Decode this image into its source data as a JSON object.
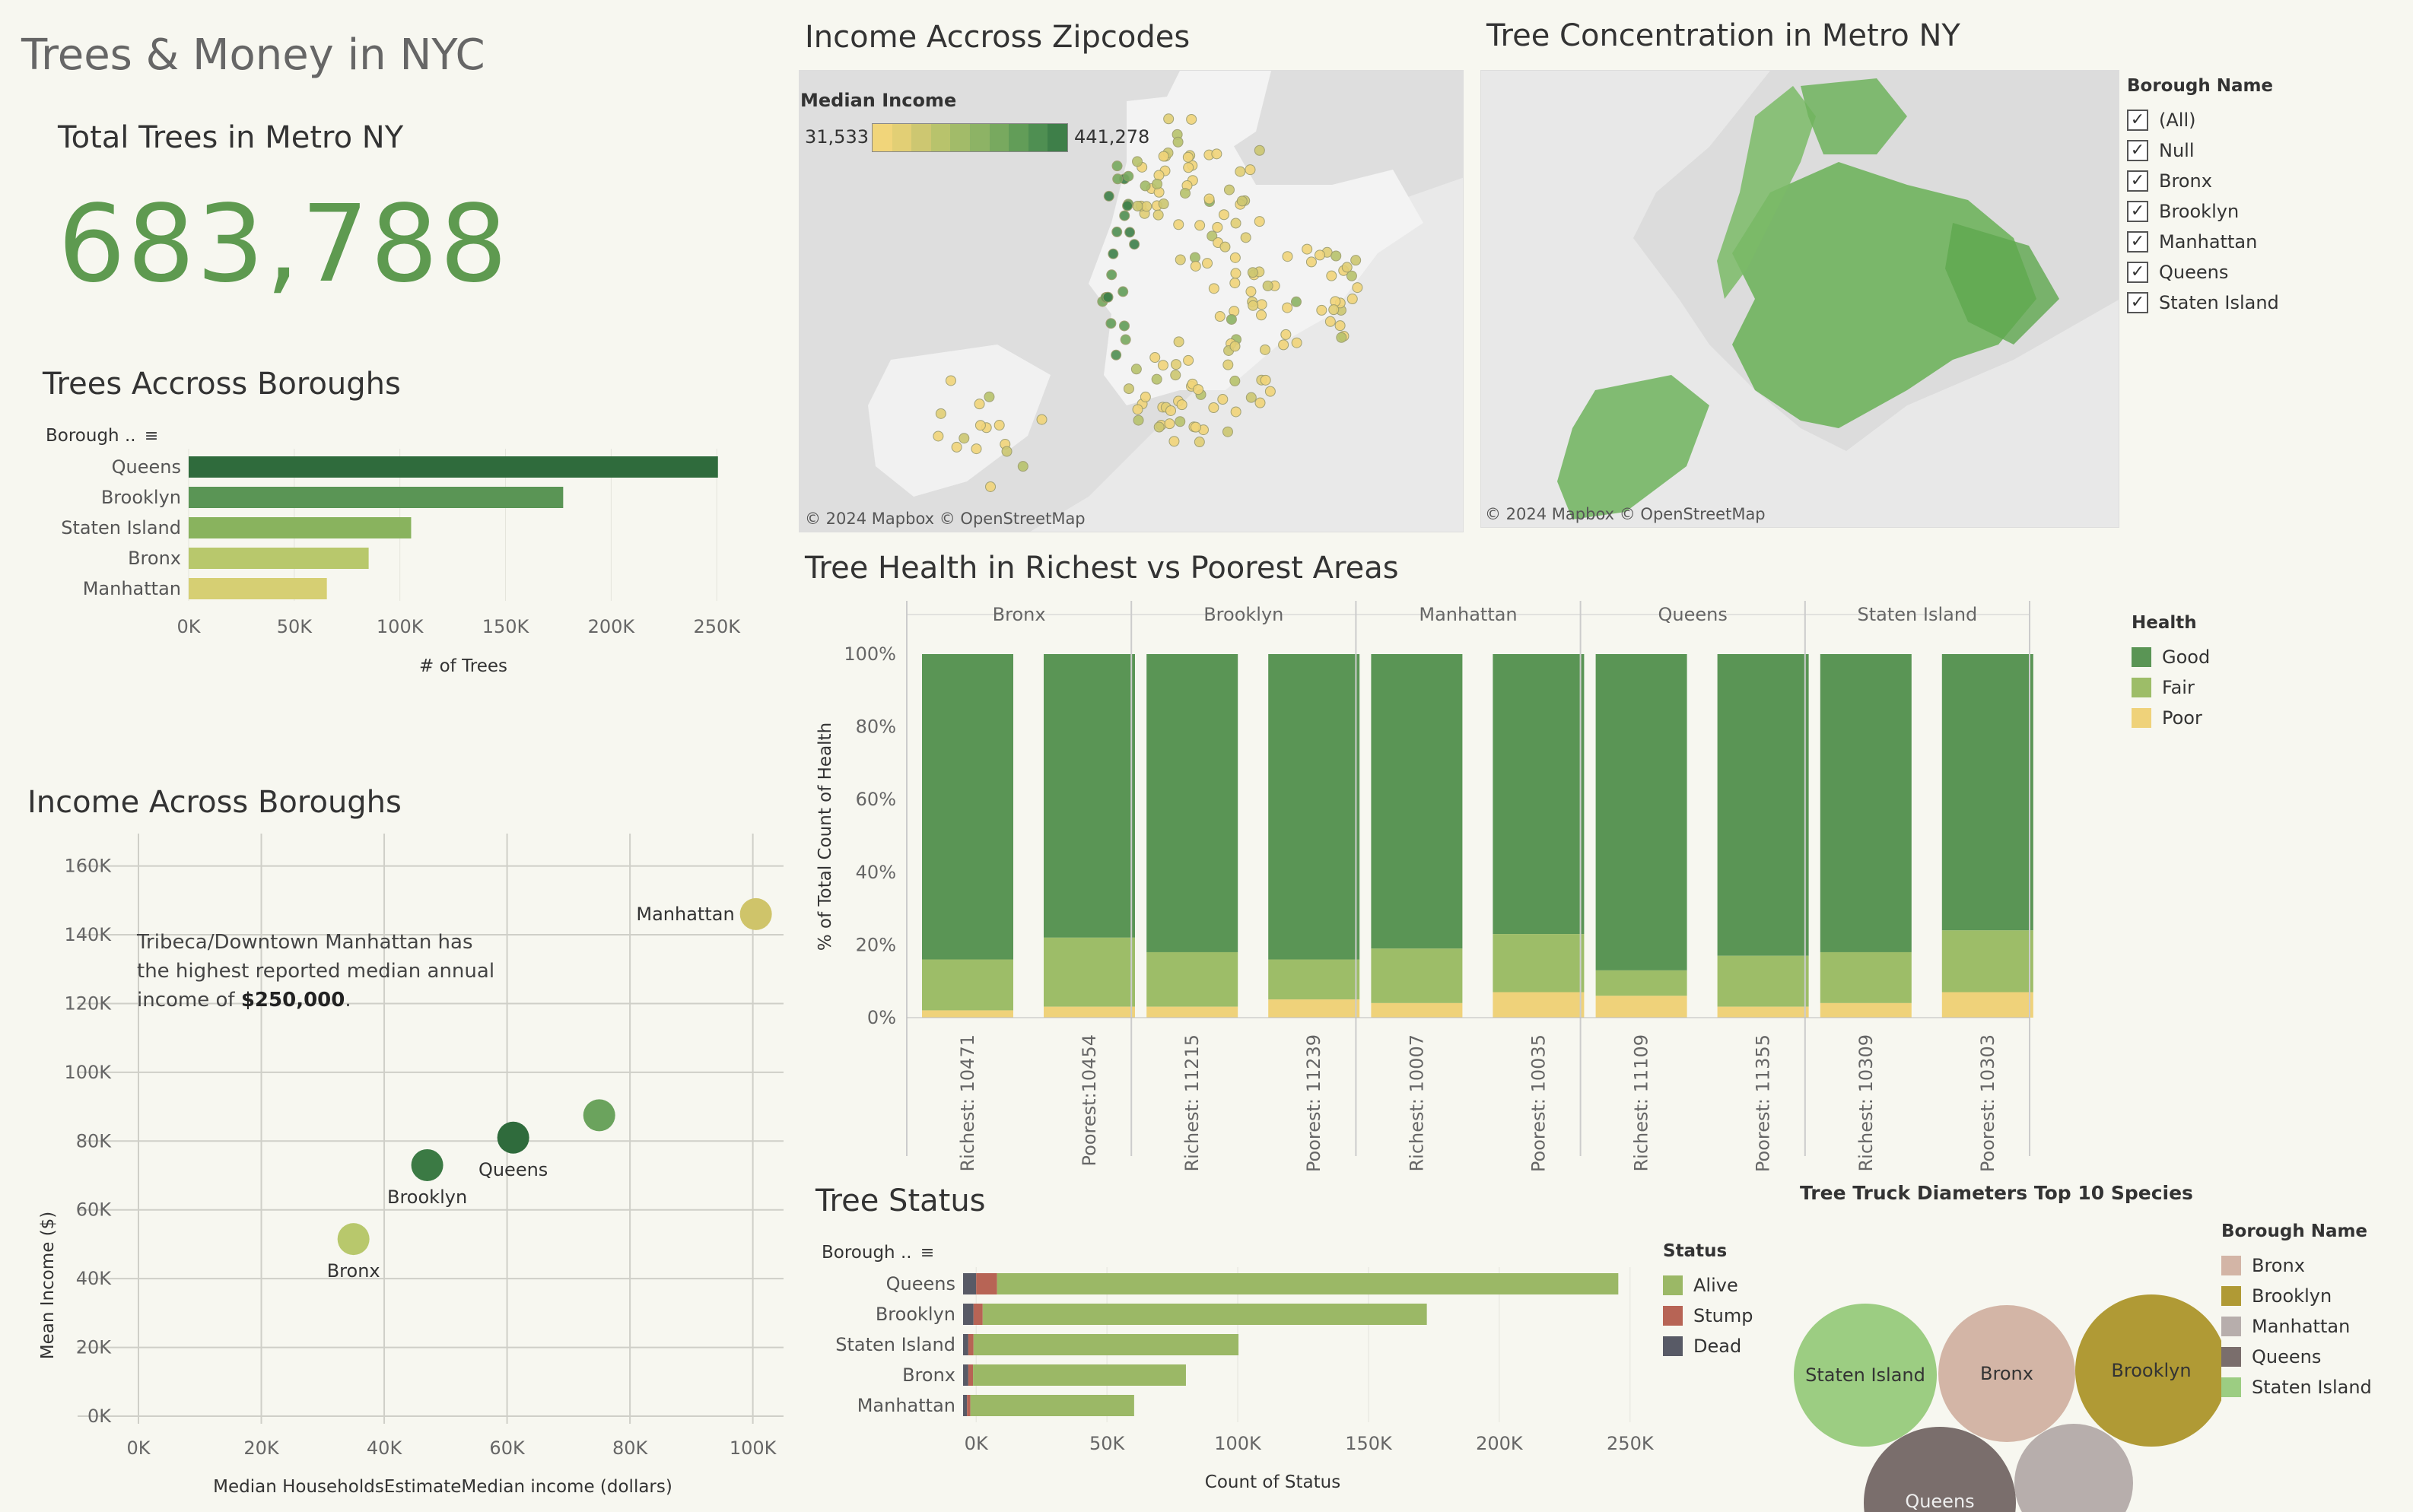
{
  "dashboard": {
    "title": "Trees & Money in NYC"
  },
  "kpi": {
    "label": "Total Trees in Metro NY",
    "value": "683,788"
  },
  "trees_boroughs": {
    "title": "Trees Accross Boroughs",
    "sort_label": "Borough ..",
    "xlabel": "# of Trees"
  },
  "income_zip": {
    "title": "Income Accross Zipcodes",
    "legend_title": "Median Income",
    "min": "31,533",
    "max": "441,278",
    "attribution": "© 2024 Mapbox  © OpenStreetMap"
  },
  "tree_concentration": {
    "title": "Tree Concentration in Metro NY",
    "attribution": "© 2024 Mapbox  © OpenStreetMap"
  },
  "borough_filter": {
    "title": "Borough Name",
    "items": [
      {
        "label": "(All)",
        "checked": true
      },
      {
        "label": "Null",
        "checked": true
      },
      {
        "label": "Bronx",
        "checked": true
      },
      {
        "label": "Brooklyn",
        "checked": true
      },
      {
        "label": "Manhattan",
        "checked": true
      },
      {
        "label": "Queens",
        "checked": true
      },
      {
        "label": "Staten Island",
        "checked": true
      }
    ]
  },
  "income_boroughs": {
    "title": "Income Across Boroughs",
    "annotation_line1": "Tribeca/Downtown Manhattan has",
    "annotation_line2": "the highest reported median annual",
    "annotation_line3_pre": "income of ",
    "annotation_value": "$250,000",
    "annotation_line3_post": "."
  },
  "tree_health": {
    "title": "Tree Health in Richest vs Poorest Areas",
    "legend_title": "Health",
    "legend": [
      {
        "label": "Good",
        "color": "#5a9555"
      },
      {
        "label": "Fair",
        "color": "#9dbd68"
      },
      {
        "label": "Poor",
        "color": "#efd27a"
      }
    ]
  },
  "tree_status": {
    "title": "Tree Status",
    "sort_label": "Borough ..",
    "xlabel": "Count of Status",
    "legend_title": "Status",
    "legend": [
      {
        "label": "Alive",
        "color": "#9bb866"
      },
      {
        "label": "Stump",
        "color": "#b76455"
      },
      {
        "label": "Dead",
        "color": "#585a66"
      }
    ]
  },
  "diameters": {
    "title": "Tree Truck Diameters Top 10 Species",
    "legend_title": "Borough Name",
    "legend": [
      {
        "label": "Bronx",
        "color": "#d3b5a6"
      },
      {
        "label": "Brooklyn",
        "color": "#b09a35"
      },
      {
        "label": "Manhattan",
        "color": "#b7aeac"
      },
      {
        "label": "Queens",
        "color": "#7a6e6c"
      },
      {
        "label": "Staten Island",
        "color": "#9ccd82"
      }
    ],
    "bubbles": [
      "Staten Island",
      "Bronx",
      "Brooklyn",
      "Queens",
      ""
    ]
  },
  "chart_data": [
    {
      "id": "trees_across_boroughs",
      "type": "bar",
      "orientation": "horizontal",
      "categories": [
        "Queens",
        "Brooklyn",
        "Staten Island",
        "Bronx",
        "Manhattan"
      ],
      "values": [
        250551,
        177293,
        105318,
        85203,
        65423
      ],
      "colors": [
        "#2f6b3c",
        "#5a9555",
        "#89b35e",
        "#b8c86c",
        "#d6cf73"
      ],
      "xlim": [
        0,
        260000
      ],
      "ticks": [
        0,
        50000,
        100000,
        150000,
        200000,
        250000
      ],
      "tick_labels": [
        "0K",
        "50K",
        "100K",
        "150K",
        "200K",
        "250K"
      ],
      "xlabel": "# of Trees"
    },
    {
      "id": "income_across_boroughs",
      "type": "scatter",
      "points": [
        {
          "label": "Manhattan",
          "x": 100500,
          "y": 146000,
          "color": "#cfc46a"
        },
        {
          "label": "",
          "x": 75000,
          "y": 87500,
          "color": "#6ba35d"
        },
        {
          "label": "Queens",
          "x": 61000,
          "y": 81000,
          "color": "#2f6b3c"
        },
        {
          "label": "Brooklyn",
          "x": 47000,
          "y": 73000,
          "color": "#3b7a44"
        },
        {
          "label": "Bronx",
          "x": 35000,
          "y": 51500,
          "color": "#b8c86c"
        }
      ],
      "xlim": [
        0,
        105000
      ],
      "ylim": [
        0,
        165000
      ],
      "xticks": [
        0,
        20000,
        40000,
        60000,
        80000,
        100000
      ],
      "xtick_labels": [
        "0K",
        "20K",
        "40K",
        "60K",
        "80K",
        "100K"
      ],
      "yticks": [
        0,
        20000,
        40000,
        60000,
        80000,
        100000,
        120000,
        140000,
        160000
      ],
      "ytick_labels": [
        "0K",
        "20K",
        "40K",
        "60K",
        "80K",
        "100K",
        "120K",
        "140K",
        "160K"
      ],
      "xlabel": "Median HouseholdsEstimateMedian income (dollars)",
      "ylabel": "Mean Income ($)"
    },
    {
      "id": "tree_health",
      "type": "bar",
      "stacked": true,
      "groups": [
        {
          "borough": "Bronx",
          "bars": [
            {
              "label": "Richest: 10471",
              "poor": 2,
              "fair": 14,
              "good": 84
            },
            {
              "label": "Poorest:10454",
              "poor": 3,
              "fair": 19,
              "good": 78
            }
          ]
        },
        {
          "borough": "Brooklyn",
          "bars": [
            {
              "label": "Richest: 11215",
              "poor": 3,
              "fair": 15,
              "good": 82
            },
            {
              "label": "Poorest: 11239",
              "poor": 5,
              "fair": 11,
              "good": 84
            }
          ]
        },
        {
          "borough": "Manhattan",
          "bars": [
            {
              "label": "Richest: 10007",
              "poor": 4,
              "fair": 15,
              "good": 81
            },
            {
              "label": "Poorest: 10035",
              "poor": 7,
              "fair": 16,
              "good": 77
            }
          ]
        },
        {
          "borough": "Queens",
          "bars": [
            {
              "label": "Richest: 11109",
              "poor": 6,
              "fair": 7,
              "good": 87
            },
            {
              "label": "Poorest: 11355",
              "poor": 3,
              "fair": 14,
              "good": 83
            }
          ]
        },
        {
          "borough": "Staten Island",
          "bars": [
            {
              "label": "Richest: 10309",
              "poor": 4,
              "fair": 14,
              "good": 82
            },
            {
              "label": "Poorest: 10303",
              "poor": 7,
              "fair": 17,
              "good": 76
            }
          ]
        }
      ],
      "yticks": [
        0,
        20,
        40,
        60,
        80,
        100
      ],
      "ytick_labels": [
        "0%",
        "20%",
        "40%",
        "60%",
        "80%",
        "100%"
      ],
      "ylabel": "% of Total Count of Health"
    },
    {
      "id": "tree_status",
      "type": "bar",
      "orientation": "horizontal",
      "stacked": true,
      "categories": [
        "Queens",
        "Brooklyn",
        "Staten Island",
        "Bronx",
        "Manhattan"
      ],
      "series": [
        {
          "name": "Dead",
          "values": [
            5000,
            4000,
            2000,
            2000,
            1500
          ]
        },
        {
          "name": "Stump",
          "values": [
            8000,
            3500,
            2000,
            1800,
            1300
          ]
        },
        {
          "name": "Alive",
          "values": [
            237500,
            169800,
            101300,
            81400,
            62600
          ]
        }
      ],
      "xlim": [
        -5000,
        255000
      ],
      "ticks": [
        0,
        50000,
        100000,
        150000,
        200000,
        250000
      ],
      "tick_labels": [
        "0K",
        "50K",
        "100K",
        "150K",
        "200K",
        "250K"
      ],
      "xlabel": "Count of Status"
    }
  ]
}
